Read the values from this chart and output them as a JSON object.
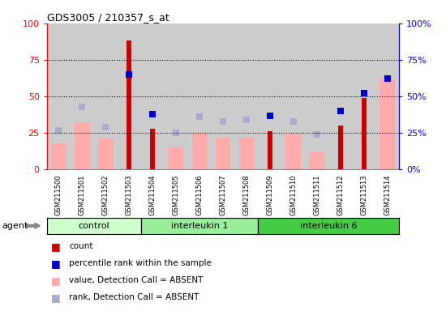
{
  "title": "GDS3005 / 210357_s_at",
  "samples": [
    "GSM211500",
    "GSM211501",
    "GSM211502",
    "GSM211503",
    "GSM211504",
    "GSM211505",
    "GSM211506",
    "GSM211507",
    "GSM211508",
    "GSM211509",
    "GSM211510",
    "GSM211511",
    "GSM211512",
    "GSM211513",
    "GSM211514"
  ],
  "groups": [
    {
      "label": "control",
      "color": "#ccffcc",
      "start": 0,
      "end": 4
    },
    {
      "label": "interleukin 1",
      "color": "#99ee99",
      "start": 4,
      "end": 9
    },
    {
      "label": "interleukin 6",
      "color": "#44cc44",
      "start": 9,
      "end": 15
    }
  ],
  "red_bars": [
    0,
    0,
    0,
    88,
    28,
    0,
    0,
    0,
    0,
    26,
    0,
    0,
    30,
    49,
    0
  ],
  "pink_bars": [
    18,
    32,
    21,
    0,
    0,
    15,
    25,
    22,
    22,
    0,
    24,
    12,
    0,
    0,
    62
  ],
  "blue_squares": [
    0,
    0,
    0,
    65,
    38,
    0,
    0,
    0,
    0,
    37,
    0,
    0,
    40,
    52,
    62
  ],
  "lavender_sq": [
    27,
    43,
    29,
    0,
    0,
    25,
    36,
    33,
    34,
    0,
    33,
    24,
    0,
    0,
    0
  ],
  "ylim": [
    0,
    100
  ],
  "yticks": [
    0,
    25,
    50,
    75,
    100
  ],
  "ytick_labels_left": [
    "0",
    "25",
    "50",
    "75",
    "100"
  ],
  "ytick_labels_right": [
    "0%",
    "25%",
    "50%",
    "75%",
    "100%"
  ],
  "grid_lines": [
    25,
    50,
    75
  ],
  "red_color": "#cc0000",
  "pink_color": "#ffaaaa",
  "blue_color": "#0000cc",
  "lavender_color": "#aaaacc",
  "col_bg": "#cccccc",
  "legend_items": [
    {
      "color": "#cc0000",
      "label": "count"
    },
    {
      "color": "#0000cc",
      "label": "percentile rank within the sample"
    },
    {
      "color": "#ffaaaa",
      "label": "value, Detection Call = ABSENT"
    },
    {
      "color": "#aaaacc",
      "label": "rank, Detection Call = ABSENT"
    }
  ],
  "agent_label": "agent"
}
